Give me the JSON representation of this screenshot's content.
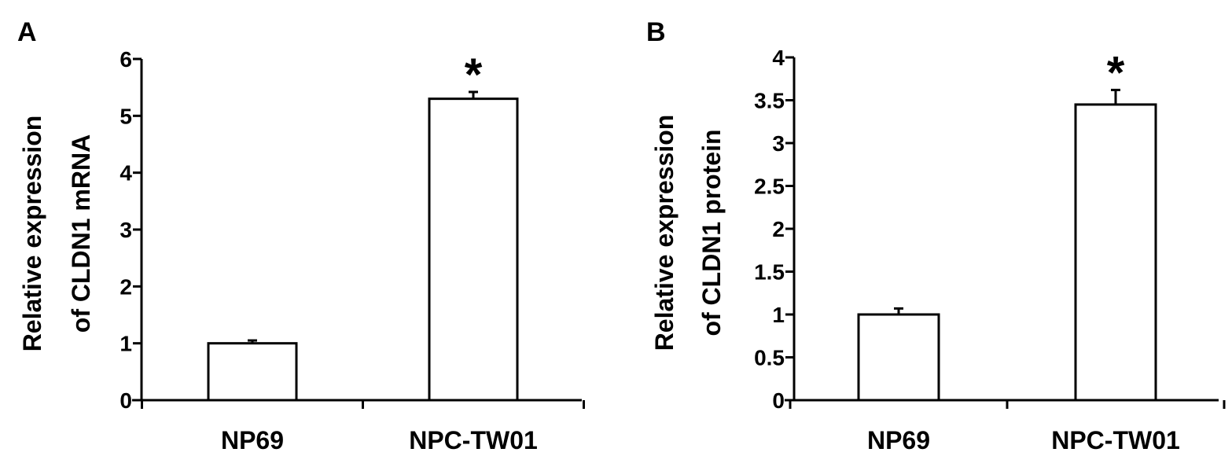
{
  "chart_data": [
    {
      "type": "bar",
      "panel": "A",
      "categories": [
        "NP69",
        "NPC-TW01"
      ],
      "values": [
        1.0,
        5.3
      ],
      "errors": [
        0.05,
        0.12
      ],
      "significance": [
        "",
        "*"
      ],
      "ylabel_lines": [
        "Relative expression",
        "of CLDN1 mRNA"
      ],
      "ylim": [
        0,
        6
      ],
      "yticks": [
        "0",
        "1",
        "2",
        "3",
        "4",
        "5",
        "6"
      ],
      "grid": false,
      "bar_fill": "#ffffff",
      "bar_stroke": "#000000"
    },
    {
      "type": "bar",
      "panel": "B",
      "categories": [
        "NP69",
        "NPC-TW01"
      ],
      "values": [
        1.0,
        3.45
      ],
      "errors": [
        0.07,
        0.17
      ],
      "significance": [
        "",
        "*"
      ],
      "ylabel_lines": [
        "Relative expression",
        "of CLDN1 protein"
      ],
      "ylim": [
        0,
        4
      ],
      "yticks": [
        "0",
        "0.5",
        "1",
        "1.5",
        "2",
        "2.5",
        "3",
        "3.5",
        "4"
      ],
      "grid": false,
      "bar_fill": "#ffffff",
      "bar_stroke": "#000000"
    }
  ]
}
